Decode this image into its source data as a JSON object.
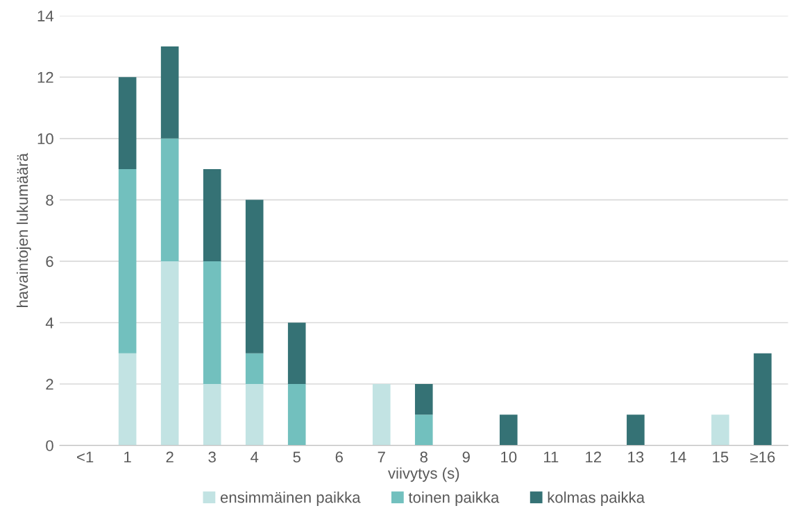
{
  "chart_data": {
    "type": "bar",
    "stacked": true,
    "xlabel": "viivytys (s)",
    "ylabel": "havaintojen lukumäärä",
    "categories": [
      "<1",
      "1",
      "2",
      "3",
      "4",
      "5",
      "6",
      "7",
      "8",
      "9",
      "10",
      "11",
      "12",
      "13",
      "14",
      "15",
      "≥16"
    ],
    "series": [
      {
        "name": "ensimmäinen paikka",
        "color": "#c2e3e3",
        "values": [
          0,
          3,
          6,
          2,
          2,
          0,
          0,
          2,
          0,
          0,
          0,
          0,
          0,
          0,
          0,
          1,
          0
        ]
      },
      {
        "name": "toinen paikka",
        "color": "#72c0be",
        "values": [
          0,
          6,
          4,
          4,
          1,
          2,
          0,
          0,
          1,
          0,
          0,
          0,
          0,
          0,
          0,
          0,
          0
        ]
      },
      {
        "name": "kolmas paikka",
        "color": "#357275",
        "values": [
          0,
          3,
          3,
          3,
          5,
          2,
          0,
          0,
          1,
          0,
          1,
          0,
          0,
          1,
          0,
          0,
          3
        ]
      }
    ],
    "ylim": [
      0,
      14
    ],
    "yticks": [
      0,
      2,
      4,
      6,
      8,
      10,
      12,
      14
    ],
    "grid": "y",
    "legend": "bottom"
  }
}
